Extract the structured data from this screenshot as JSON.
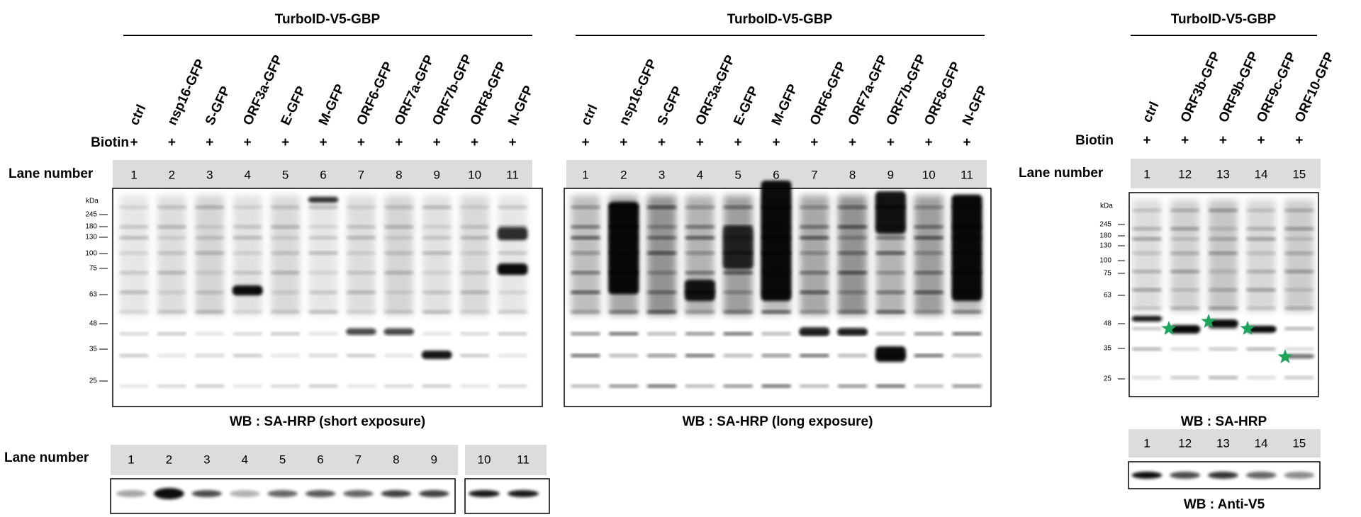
{
  "panels": [
    {
      "header": "TurboID-V5-GBP",
      "lanes": [
        "ctrl",
        "nsp16-GFP",
        "S-GFP",
        "ORF3a-GFP",
        "E-GFP",
        "M-GFP",
        "ORF6-GFP",
        "ORF7a-GFP",
        "ORF7b-GFP",
        "ORF8-GFP",
        "N-GFP"
      ],
      "biotin_label": "Biotin",
      "biotin": [
        "+",
        "+",
        "+",
        "+",
        "+",
        "+",
        "+",
        "+",
        "+",
        "+",
        "+"
      ],
      "lane_number_label": "Lane number",
      "lane_numbers": [
        "1",
        "2",
        "3",
        "4",
        "5",
        "6",
        "7",
        "8",
        "9",
        "10",
        "11"
      ],
      "marker_unit": "kDa",
      "markers": [
        "245",
        "180",
        "130",
        "100",
        "75",
        "63",
        "48",
        "35",
        "25"
      ],
      "caption": "WB : SA-HRP (short exposure)"
    },
    {
      "header": "TurboID-V5-GBP",
      "lanes": [
        "ctrl",
        "nsp16-GFP",
        "S-GFP",
        "ORF3a-GFP",
        "E-GFP",
        "M-GFP",
        "ORF6-GFP",
        "ORF7a-GFP",
        "ORF7b-GFP",
        "ORF8-GFP",
        "N-GFP"
      ],
      "biotin_label": "Biotin",
      "biotin": [
        "+",
        "+",
        "+",
        "+",
        "+",
        "+",
        "+",
        "+",
        "+",
        "+",
        "+"
      ],
      "lane_numbers": [
        "1",
        "2",
        "3",
        "4",
        "5",
        "6",
        "7",
        "8",
        "9",
        "10",
        "11"
      ],
      "caption": "WB : SA-HRP (long exposure)"
    },
    {
      "header": "TurboID-V5-GBP",
      "lanes": [
        "ctrl",
        "ORF3b-GFP",
        "ORF9b-GFP",
        "ORF9c-GFP",
        "ORF10-GFP"
      ],
      "biotin_label": "Biotin",
      "biotin": [
        "+",
        "+",
        "+",
        "+",
        "+"
      ],
      "lane_number_label": "Lane number",
      "lane_numbers": [
        "1",
        "12",
        "13",
        "14",
        "15"
      ],
      "marker_unit": "kDa",
      "markers": [
        "245",
        "180",
        "130",
        "100",
        "75",
        "63",
        "48",
        "35",
        "25"
      ],
      "caption": "WB : SA-HRP"
    }
  ],
  "loading": [
    {
      "lane_number_label": "Lane number",
      "groups": [
        [
          "1",
          "2",
          "3",
          "4",
          "5",
          "6",
          "7",
          "8",
          "9"
        ],
        [
          "10",
          "11"
        ]
      ]
    },
    {
      "lane_numbers": [
        "1",
        "12",
        "13",
        "14",
        "15"
      ],
      "caption": "WB : Anti-V5"
    }
  ]
}
